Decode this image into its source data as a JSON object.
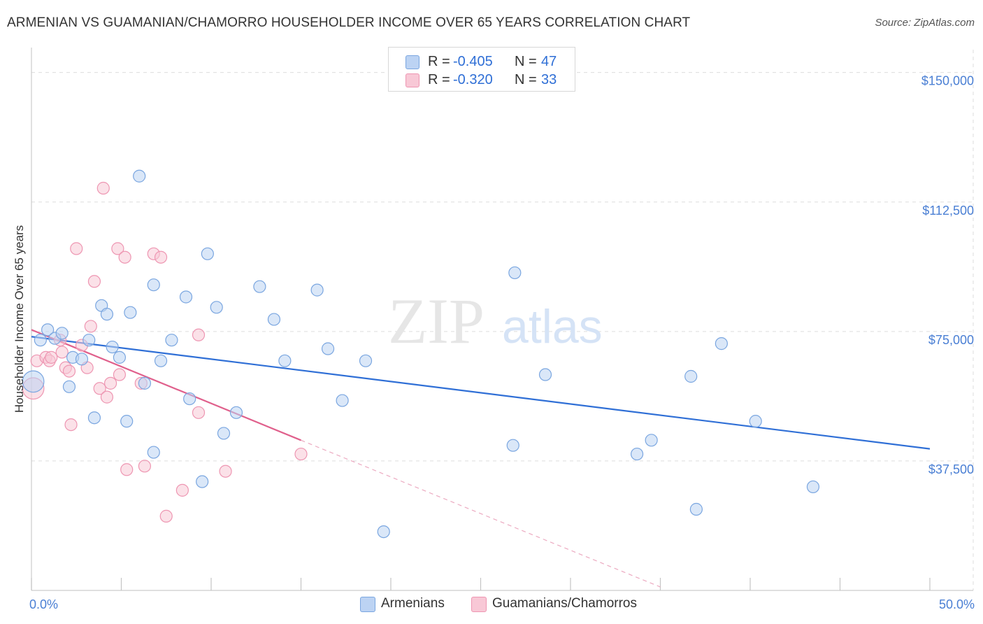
{
  "title": "ARMENIAN VS GUAMANIAN/CHAMORRO HOUSEHOLDER INCOME OVER 65 YEARS CORRELATION CHART",
  "source": "Source: ZipAtlas.com",
  "watermark": {
    "zip": "ZIP",
    "atlas": "atlas"
  },
  "legend": {
    "r_label": "R =",
    "n_label": "N =",
    "series": [
      {
        "name": "Armenians",
        "r": "-0.405",
        "n": "47",
        "fill": "#bcd3f3",
        "stroke": "#7aa6e0"
      },
      {
        "name": "Guamanians/Chamorros",
        "r": "-0.320",
        "n": "33",
        "fill": "#f8c8d6",
        "stroke": "#ee96b2"
      }
    ]
  },
  "colors": {
    "blue_line": "#2f6fd6",
    "pink_line": "#e0608c",
    "tick_text": "#4a7fd4",
    "grid": "#dddddd"
  },
  "chart_data": {
    "type": "scatter",
    "title": "ARMENIAN VS GUAMANIAN/CHAMORRO HOUSEHOLDER INCOME OVER 65 YEARS CORRELATION CHART",
    "xlabel": "",
    "ylabel": "Householder Income Over 65 years",
    "xlim": [
      0,
      50
    ],
    "ylim": [
      0,
      155000
    ],
    "x_tick_labels": [
      "0.0%",
      "50.0%"
    ],
    "y_ticks": [
      {
        "value": 37500,
        "label": "$37,500"
      },
      {
        "value": 75000,
        "label": "$75,000"
      },
      {
        "value": 112500,
        "label": "$112,500"
      },
      {
        "value": 150000,
        "label": "$150,000"
      }
    ],
    "grid": true,
    "legend_position": "top-center",
    "series": [
      {
        "name": "Armenians",
        "r": -0.405,
        "n": 47,
        "trend": {
          "x0": 0,
          "y0": 73500,
          "x1": 50,
          "y1": 41000
        },
        "points": [
          [
            0.1,
            60500,
            1.8
          ],
          [
            0.5,
            72500,
            1
          ],
          [
            0.9,
            75500,
            1
          ],
          [
            1.3,
            73000,
            1
          ],
          [
            1.7,
            74500,
            1
          ],
          [
            2.1,
            59000,
            1
          ],
          [
            2.3,
            67500,
            1
          ],
          [
            2.8,
            67000,
            1
          ],
          [
            3.2,
            72500,
            1
          ],
          [
            3.5,
            50000,
            1
          ],
          [
            3.9,
            82500,
            1
          ],
          [
            4.2,
            80000,
            1
          ],
          [
            4.5,
            70500,
            1
          ],
          [
            4.9,
            67500,
            1
          ],
          [
            5.3,
            49000,
            1
          ],
          [
            5.5,
            80500,
            1
          ],
          [
            6.0,
            120000,
            1
          ],
          [
            6.3,
            60000,
            1
          ],
          [
            6.8,
            88500,
            1
          ],
          [
            6.8,
            40000,
            1
          ],
          [
            7.2,
            66500,
            1
          ],
          [
            7.8,
            72500,
            1
          ],
          [
            8.6,
            85000,
            1
          ],
          [
            8.8,
            55500,
            1
          ],
          [
            9.5,
            31500,
            1
          ],
          [
            9.8,
            97500,
            1
          ],
          [
            10.3,
            82000,
            1
          ],
          [
            10.7,
            45500,
            1
          ],
          [
            11.4,
            51500,
            1
          ],
          [
            12.7,
            88000,
            1
          ],
          [
            13.5,
            78500,
            1
          ],
          [
            14.1,
            66500,
            1
          ],
          [
            15.9,
            87000,
            1
          ],
          [
            16.5,
            70000,
            1
          ],
          [
            17.3,
            55000,
            1
          ],
          [
            18.6,
            66500,
            1
          ],
          [
            19.6,
            17000,
            1
          ],
          [
            26.8,
            42000,
            1
          ],
          [
            26.9,
            92000,
            1
          ],
          [
            28.6,
            62500,
            1
          ],
          [
            33.7,
            39500,
            1
          ],
          [
            34.5,
            43500,
            1
          ],
          [
            36.7,
            62000,
            1
          ],
          [
            37.0,
            23500,
            1
          ],
          [
            38.4,
            71500,
            1
          ],
          [
            40.3,
            49000,
            1
          ],
          [
            43.5,
            30000,
            1
          ]
        ]
      },
      {
        "name": "Guamanians/Chamorros",
        "r": -0.32,
        "n": 33,
        "trend": {
          "x0": 0,
          "y0": 75500,
          "x1": 15,
          "y1": 43500
        },
        "trend_extension": {
          "x0": 15,
          "y0": 43500,
          "x1": 35,
          "y1": 1000
        },
        "points": [
          [
            0.1,
            58500,
            1.8
          ],
          [
            0.3,
            66500,
            1
          ],
          [
            0.8,
            67500,
            1
          ],
          [
            1.0,
            66500,
            1
          ],
          [
            1.1,
            67500,
            1
          ],
          [
            1.6,
            72500,
            1
          ],
          [
            1.7,
            69000,
            1
          ],
          [
            1.9,
            64500,
            1
          ],
          [
            2.1,
            63500,
            1
          ],
          [
            2.2,
            48000,
            1
          ],
          [
            2.5,
            99000,
            1
          ],
          [
            2.8,
            71000,
            1
          ],
          [
            3.1,
            64500,
            1
          ],
          [
            3.3,
            76500,
            1
          ],
          [
            3.5,
            89500,
            1
          ],
          [
            3.8,
            58500,
            1
          ],
          [
            4.0,
            116500,
            1
          ],
          [
            4.2,
            56000,
            1
          ],
          [
            4.4,
            60000,
            1
          ],
          [
            4.8,
            99000,
            1
          ],
          [
            4.9,
            62500,
            1
          ],
          [
            5.2,
            96500,
            1
          ],
          [
            5.3,
            35000,
            1
          ],
          [
            6.1,
            60000,
            1
          ],
          [
            6.3,
            36000,
            1
          ],
          [
            6.8,
            97500,
            1
          ],
          [
            7.2,
            96500,
            1
          ],
          [
            7.5,
            21500,
            1
          ],
          [
            8.4,
            29000,
            1
          ],
          [
            9.3,
            74000,
            1
          ],
          [
            9.3,
            51500,
            1
          ],
          [
            10.8,
            34500,
            1
          ],
          [
            15.0,
            39500,
            1
          ]
        ]
      }
    ]
  }
}
